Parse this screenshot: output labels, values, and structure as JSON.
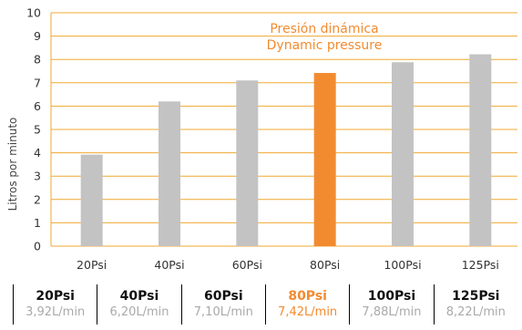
{
  "chart_data": {
    "type": "bar",
    "categories": [
      "20Psi",
      "40Psi",
      "60Psi",
      "80Psi",
      "100Psi",
      "125Psi"
    ],
    "values": [
      3.92,
      6.2,
      7.1,
      7.42,
      7.88,
      8.22
    ],
    "ylabel": "Litros por minuto",
    "xlabel": "",
    "ylim": [
      0,
      10
    ],
    "yticks": [
      0,
      1,
      2,
      3,
      4,
      5,
      6,
      7,
      8,
      9,
      10
    ],
    "grid": true,
    "highlight_index": 3,
    "annotation": {
      "line1": "Presión dinámica",
      "line2": "Dynamic pressure"
    }
  },
  "colors": {
    "bar": "#c3c3c3",
    "highlight": "#f28b30",
    "grid": "#f0a830",
    "text": "#333333"
  },
  "summary": [
    {
      "psi": "20Psi",
      "flow": "3,92L/min"
    },
    {
      "psi": "40Psi",
      "flow": "6,20L/min"
    },
    {
      "psi": "60Psi",
      "flow": "7,10L/min"
    },
    {
      "psi": "80Psi",
      "flow": "7,42L/min"
    },
    {
      "psi": "100Psi",
      "flow": "7,88L/min"
    },
    {
      "psi": "125Psi",
      "flow": "8,22L/min"
    }
  ]
}
